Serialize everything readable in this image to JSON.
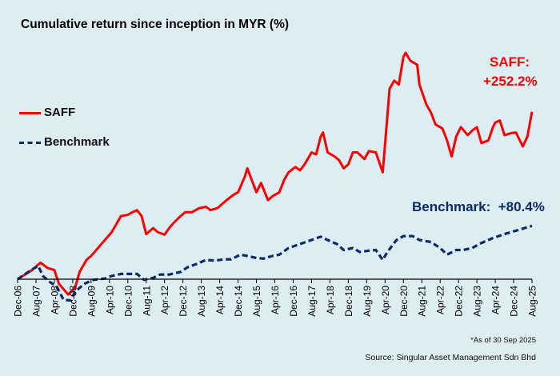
{
  "chart_data": {
    "type": "line",
    "title": "Cumulative return since inception in MYR (%)",
    "xlabel": "",
    "ylabel": "",
    "x_unit": "months since Dec-06",
    "tick_labels": [
      "Dec-06",
      "Aug-07",
      "Apr-08",
      "Dec-08",
      "Aug-09",
      "Apr-10",
      "Dec-10",
      "Aug-11",
      "Apr-12",
      "Dec-12",
      "Aug-13",
      "Apr-14",
      "Dec-14",
      "Aug-15",
      "Apr-16",
      "Dec-16",
      "Aug-17",
      "Apr-18",
      "Dec-18",
      "Aug-19",
      "Apr-20",
      "Dec-20",
      "Aug-21",
      "Apr-22",
      "Dec-22",
      "Aug-23",
      "Apr-24",
      "Dec-24",
      "Aug-25"
    ],
    "tick_interval_months": 8,
    "xlim": [
      0,
      224
    ],
    "ylim": [
      -40,
      345
    ],
    "grid": false,
    "legend_position": "left",
    "series": [
      {
        "name": "SAFF",
        "color": "#ff0000",
        "style": "solid",
        "points": [
          [
            0,
            0
          ],
          [
            6,
            13
          ],
          [
            10,
            25
          ],
          [
            13,
            17
          ],
          [
            16,
            14
          ],
          [
            18,
            -7
          ],
          [
            22,
            -23
          ],
          [
            25,
            -13
          ],
          [
            27,
            11
          ],
          [
            30,
            29
          ],
          [
            32,
            35
          ],
          [
            35,
            47
          ],
          [
            38,
            59
          ],
          [
            41,
            71
          ],
          [
            44,
            89
          ],
          [
            45,
            95
          ],
          [
            48,
            97
          ],
          [
            50,
            101
          ],
          [
            52,
            104
          ],
          [
            54,
            95
          ],
          [
            56,
            68
          ],
          [
            59,
            77
          ],
          [
            61,
            71
          ],
          [
            64,
            67
          ],
          [
            66,
            77
          ],
          [
            68,
            85
          ],
          [
            71,
            95
          ],
          [
            73,
            101
          ],
          [
            76,
            101
          ],
          [
            79,
            107
          ],
          [
            82,
            109
          ],
          [
            84,
            104
          ],
          [
            87,
            107
          ],
          [
            91,
            119
          ],
          [
            94,
            127
          ],
          [
            96,
            131
          ],
          [
            99,
            155
          ],
          [
            100,
            167
          ],
          [
            102,
            149
          ],
          [
            104,
            131
          ],
          [
            106,
            145
          ],
          [
            108,
            128
          ],
          [
            109,
            119
          ],
          [
            111,
            125
          ],
          [
            114,
            131
          ],
          [
            116,
            149
          ],
          [
            118,
            161
          ],
          [
            121,
            169
          ],
          [
            123,
            164
          ],
          [
            125,
            173
          ],
          [
            128,
            191
          ],
          [
            130,
            188
          ],
          [
            132,
            215
          ],
          [
            133,
            221
          ],
          [
            135,
            191
          ],
          [
            138,
            185
          ],
          [
            140,
            179
          ],
          [
            142,
            167
          ],
          [
            144,
            173
          ],
          [
            146,
            191
          ],
          [
            148,
            191
          ],
          [
            151,
            181
          ],
          [
            153,
            193
          ],
          [
            156,
            191
          ],
          [
            159,
            161
          ],
          [
            160,
            203
          ],
          [
            162,
            287
          ],
          [
            164,
            299
          ],
          [
            166,
            293
          ],
          [
            168,
            335
          ],
          [
            169,
            341
          ],
          [
            171,
            329
          ],
          [
            174,
            323
          ],
          [
            175,
            293
          ],
          [
            178,
            263
          ],
          [
            180,
            251
          ],
          [
            182,
            233
          ],
          [
            185,
            227
          ],
          [
            187,
            209
          ],
          [
            189,
            185
          ],
          [
            191,
            215
          ],
          [
            193,
            229
          ],
          [
            196,
            217
          ],
          [
            198,
            224
          ],
          [
            200,
            229
          ],
          [
            202,
            205
          ],
          [
            205,
            209
          ],
          [
            207,
            229
          ],
          [
            208,
            236
          ],
          [
            210,
            239
          ],
          [
            212,
            217
          ],
          [
            215,
            220
          ],
          [
            217,
            221
          ],
          [
            220,
            200
          ],
          [
            222,
            215
          ],
          [
            224,
            252.2
          ]
        ]
      },
      {
        "name": "Benchmark",
        "color": "#0d2a66",
        "style": "dashed",
        "points": [
          [
            0,
            0
          ],
          [
            6,
            14
          ],
          [
            9,
            20
          ],
          [
            11,
            5
          ],
          [
            14,
            -4
          ],
          [
            17,
            -11
          ],
          [
            20,
            -31
          ],
          [
            23,
            -32
          ],
          [
            25,
            -19
          ],
          [
            29,
            -7
          ],
          [
            33,
            -1
          ],
          [
            38,
            1
          ],
          [
            41,
            5
          ],
          [
            45,
            8
          ],
          [
            48,
            8
          ],
          [
            52,
            8
          ],
          [
            55,
            -1
          ],
          [
            59,
            2
          ],
          [
            62,
            7
          ],
          [
            66,
            7
          ],
          [
            71,
            11
          ],
          [
            74,
            18
          ],
          [
            78,
            23
          ],
          [
            82,
            29
          ],
          [
            86,
            28
          ],
          [
            90,
            30
          ],
          [
            93,
            30
          ],
          [
            97,
            37
          ],
          [
            100,
            35
          ],
          [
            104,
            32
          ],
          [
            107,
            31
          ],
          [
            111,
            35
          ],
          [
            114,
            37
          ],
          [
            118,
            47
          ],
          [
            123,
            53
          ],
          [
            128,
            59
          ],
          [
            132,
            64
          ],
          [
            135,
            59
          ],
          [
            139,
            53
          ],
          [
            142,
            44
          ],
          [
            146,
            47
          ],
          [
            149,
            41
          ],
          [
            153,
            43
          ],
          [
            156,
            44
          ],
          [
            159,
            29
          ],
          [
            161,
            41
          ],
          [
            165,
            59
          ],
          [
            168,
            65
          ],
          [
            172,
            65
          ],
          [
            175,
            59
          ],
          [
            180,
            56
          ],
          [
            184,
            47
          ],
          [
            187,
            37
          ],
          [
            191,
            44
          ],
          [
            194,
            44
          ],
          [
            198,
            47
          ],
          [
            201,
            53
          ],
          [
            207,
            62
          ],
          [
            212,
            68
          ],
          [
            217,
            73
          ],
          [
            224,
            80.4
          ]
        ]
      }
    ],
    "annotations": {
      "saff_name": "SAFF:",
      "saff_value": "+252.2%",
      "benchmark_label": "Benchmark:  +80.4%"
    },
    "legend": [
      "SAFF",
      "Benchmark"
    ],
    "notes": {
      "as_of": "*As of 30 Sep 2025",
      "source": "Source: Singular Asset Management Sdn Bhd"
    }
  }
}
